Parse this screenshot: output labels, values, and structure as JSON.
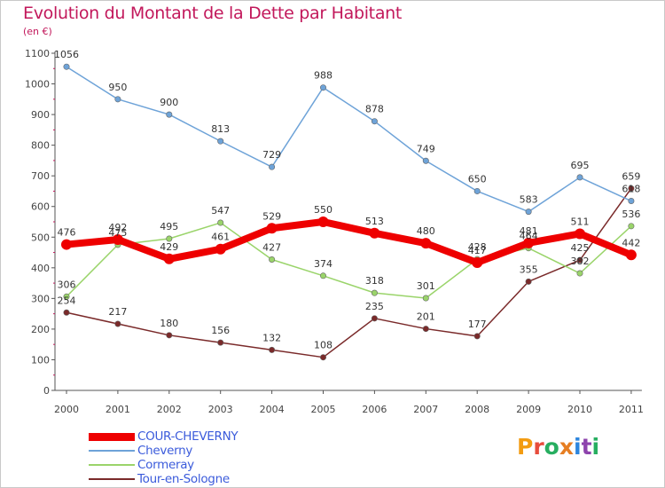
{
  "header": {
    "title": "Evolution du Montant de la Dette par Habitant",
    "subtitle": "(en €)"
  },
  "logo": {
    "text": "Proxiti",
    "colors": [
      "#f39c12",
      "#e74c3c",
      "#27ae60",
      "#e67e22",
      "#2e86de",
      "#8e44ad",
      "#27ae60"
    ]
  },
  "chart_data": {
    "type": "line",
    "title": "Evolution du Montant de la Dette par Habitant",
    "subtitle": "(en €)",
    "x": [
      "2000",
      "2001",
      "2002",
      "2003",
      "2004",
      "2005",
      "2006",
      "2007",
      "2008",
      "2009",
      "2010",
      "2011"
    ],
    "yticks": [
      "0",
      "100",
      "200",
      "300",
      "400",
      "500",
      "600",
      "700",
      "800",
      "900",
      "1000",
      "1100"
    ],
    "ylim": [
      0,
      1100
    ],
    "grid": false,
    "legend_position": "bottom-left",
    "series": [
      {
        "name": "COUR-CHEVERNY",
        "color": "#ee0000",
        "values": [
          476,
          492,
          429,
          461,
          529,
          550,
          513,
          480,
          417,
          481,
          511,
          442
        ],
        "labels": [
          "476",
          "492",
          "429",
          "461",
          "529",
          "550",
          "513",
          "480",
          "417",
          "481",
          "511",
          "442"
        ]
      },
      {
        "name": "Cheverny",
        "color": "#6ea3d8",
        "values": [
          1056,
          950,
          900,
          813,
          729,
          988,
          878,
          749,
          650,
          583,
          695,
          618
        ],
        "labels": [
          "1056",
          "950",
          "900",
          "813",
          "729",
          "988",
          "878",
          "749",
          "650",
          "583",
          "695",
          "618"
        ]
      },
      {
        "name": "Cormeray",
        "color": "#9ad46a",
        "values": [
          306,
          475,
          495,
          547,
          427,
          374,
          318,
          301,
          428,
          464,
          382,
          536
        ],
        "labels": [
          "306",
          "475",
          "495",
          "547",
          "427",
          "374",
          "318",
          "301",
          "428",
          "464",
          "382",
          "536"
        ]
      },
      {
        "name": "Tour-en-Sologne",
        "color": "#7a2a2a",
        "values": [
          254,
          217,
          180,
          156,
          132,
          108,
          235,
          201,
          177,
          355,
          425,
          659
        ],
        "labels": [
          "254",
          "217",
          "180",
          "156",
          "132",
          "108",
          "235",
          "201",
          "177",
          "355",
          "425",
          "659"
        ]
      }
    ]
  }
}
